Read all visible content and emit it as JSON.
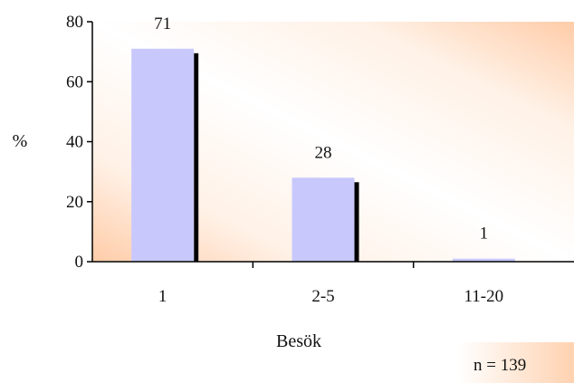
{
  "chart_data": {
    "type": "bar",
    "title": "",
    "xlabel": "Besök",
    "ylabel": "%",
    "categories": [
      "1",
      "2-5",
      "11-20"
    ],
    "values": [
      71,
      28,
      1
    ],
    "data_labels": [
      "71",
      "28",
      "1"
    ],
    "ylim": [
      0,
      80
    ],
    "yticks": [
      0,
      20,
      40,
      60,
      80
    ],
    "grid": false,
    "legend": "none",
    "bar_color": "#c8c8fc",
    "bar_shadow_color": "#000000",
    "background_gradient": [
      "#ffffff",
      "#ffd4b4"
    ]
  },
  "note": {
    "text": "n = 139"
  }
}
